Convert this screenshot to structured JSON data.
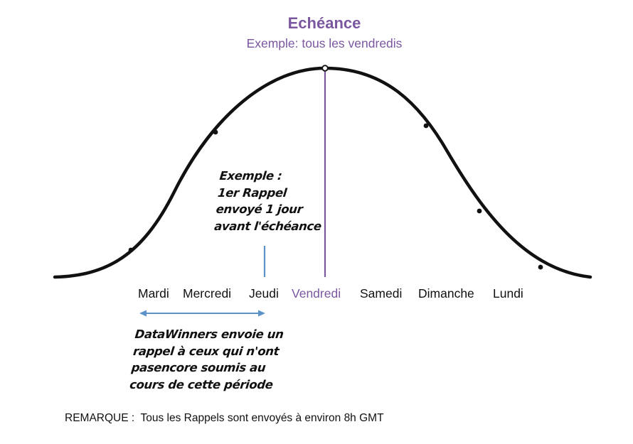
{
  "colors": {
    "accent": "#7b57a0",
    "arrow": "#5b92c8",
    "curve": "#111111"
  },
  "header": {
    "title": "Echéance",
    "subtitle": "Exemple: tous les vendredis"
  },
  "days": [
    {
      "label": "Mardi",
      "active": false
    },
    {
      "label": "Mercredi",
      "active": false
    },
    {
      "label": "Jeudi",
      "active": false
    },
    {
      "label": "Vendredi",
      "active": true
    },
    {
      "label": "Samedi",
      "active": false
    },
    {
      "label": "Dimanche",
      "active": false
    },
    {
      "label": "Lundi",
      "active": false
    }
  ],
  "example_note": {
    "lines": [
      "Exemple :",
      "1er Rappel",
      "envoyé 1 jour",
      "avant l'échéance"
    ]
  },
  "period_note": {
    "lines": [
      "DataWinners envoie un",
      "rappel à ceux qui n'ont",
      "pasencore soumis au",
      "cours de cette période"
    ]
  },
  "remark": "REMARQUE :  Tous les Rappels sont envoyés à environ 8h GMT"
}
